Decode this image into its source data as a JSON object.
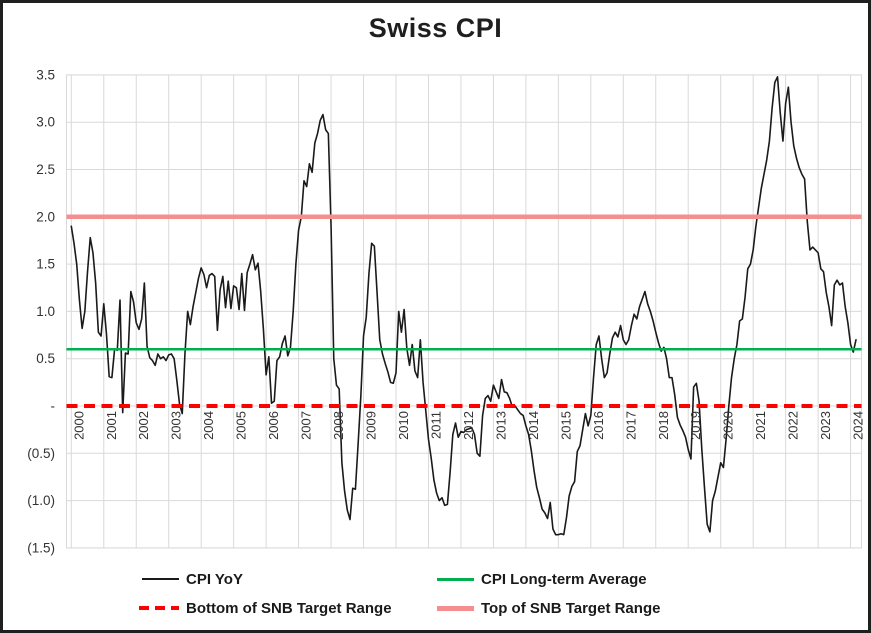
{
  "title": "Swiss CPI",
  "colors": {
    "cpi_line": "#1a1a1a",
    "average_line": "#00B050",
    "bottom_target_line": "#FF0000",
    "top_target_line": "#F58F8F",
    "gridline": "#D9D9D9",
    "axis_text": "#333333",
    "frame_border": "#1f1f1f",
    "background": "#ffffff"
  },
  "legend": {
    "items": [
      {
        "label": "CPI YoY"
      },
      {
        "label": "CPI Long-term Average"
      },
      {
        "label": "Bottom of SNB Target Range"
      },
      {
        "label": "Top of SNB Target Range"
      }
    ]
  },
  "chart_data": {
    "type": "line",
    "title": "Swiss CPI",
    "x_start": "2000-01",
    "frequency": "monthly",
    "ylim": [
      -1.5,
      3.5
    ],
    "grid": true,
    "legend_position": "bottom",
    "x_tick_years": [
      "2000",
      "2001",
      "2002",
      "2003",
      "2004",
      "2005",
      "2006",
      "2007",
      "2008",
      "2009",
      "2010",
      "2011",
      "2012",
      "2013",
      "2014",
      "2015",
      "2016",
      "2017",
      "2018",
      "2019",
      "2020",
      "2021",
      "2022",
      "2023",
      "2024"
    ],
    "y_ticks": [
      {
        "label": "3.5",
        "value": 3.5
      },
      {
        "label": "3.0",
        "value": 3.0
      },
      {
        "label": "2.5",
        "value": 2.5
      },
      {
        "label": "2.0",
        "value": 2.0
      },
      {
        "label": "1.5",
        "value": 1.5
      },
      {
        "label": "1.0",
        "value": 1.0
      },
      {
        "label": "0.5",
        "value": 0.5
      },
      {
        "label": "-",
        "value": 0.0
      },
      {
        "label": "(0.5)",
        "value": -0.5
      },
      {
        "label": "(1.0)",
        "value": -1.0
      },
      {
        "label": "(1.5)",
        "value": -1.5
      }
    ],
    "series": [
      {
        "name": "CPI YoY",
        "kind": "line",
        "color": "#1a1a1a",
        "monthly_values": [
          1.9,
          1.72,
          1.5,
          1.12,
          0.82,
          1.0,
          1.42,
          1.78,
          1.62,
          1.3,
          0.78,
          0.74,
          1.08,
          0.76,
          0.31,
          0.3,
          0.6,
          0.59,
          1.12,
          -0.07,
          0.56,
          0.55,
          1.21,
          1.1,
          0.88,
          0.81,
          0.92,
          1.3,
          0.63,
          0.51,
          0.48,
          0.43,
          0.55,
          0.5,
          0.52,
          0.48,
          0.54,
          0.55,
          0.5,
          0.27,
          0.02,
          -0.08,
          0.55,
          1.0,
          0.86,
          1.05,
          1.2,
          1.35,
          1.46,
          1.39,
          1.25,
          1.38,
          1.4,
          1.37,
          0.8,
          1.23,
          1.37,
          1.04,
          1.32,
          1.03,
          1.27,
          1.25,
          1.02,
          1.4,
          1.01,
          1.41,
          1.5,
          1.6,
          1.44,
          1.51,
          1.21,
          0.81,
          0.33,
          0.52,
          0.03,
          0.05,
          0.48,
          0.52,
          0.66,
          0.74,
          0.53,
          0.62,
          1.0,
          1.5,
          1.86,
          2.0,
          2.38,
          2.32,
          2.56,
          2.47,
          2.78,
          2.88,
          3.02,
          3.08,
          2.92,
          2.88,
          1.9,
          0.5,
          0.22,
          0.18,
          -0.6,
          -0.9,
          -1.1,
          -1.2,
          -0.87,
          -0.88,
          -0.4,
          0.1,
          0.74,
          0.94,
          1.4,
          1.72,
          1.69,
          1.2,
          0.7,
          0.55,
          0.45,
          0.36,
          0.25,
          0.24,
          0.35,
          1.0,
          0.78,
          1.02,
          0.61,
          0.43,
          0.65,
          0.37,
          0.3,
          0.7,
          0.25,
          -0.05,
          -0.35,
          -0.55,
          -0.78,
          -0.92,
          -1.0,
          -0.97,
          -1.05,
          -1.04,
          -0.7,
          -0.3,
          -0.18,
          -0.33,
          -0.27,
          -0.28,
          -0.25,
          -0.24,
          -0.23,
          -0.3,
          -0.5,
          -0.53,
          -0.1,
          0.08,
          0.11,
          0.05,
          0.22,
          0.15,
          0.08,
          0.28,
          0.15,
          0.14,
          0.08,
          -0.01,
          0.0,
          -0.04,
          -0.08,
          -0.1,
          -0.21,
          -0.3,
          -0.47,
          -0.68,
          -0.86,
          -0.97,
          -1.09,
          -1.13,
          -1.19,
          -1.02,
          -1.3,
          -1.36,
          -1.36,
          -1.35,
          -1.36,
          -1.18,
          -0.95,
          -0.85,
          -0.8,
          -0.48,
          -0.42,
          -0.25,
          -0.08,
          -0.21,
          -0.1,
          0.3,
          0.65,
          0.74,
          0.5,
          0.3,
          0.35,
          0.55,
          0.72,
          0.78,
          0.73,
          0.85,
          0.7,
          0.65,
          0.7,
          0.85,
          0.97,
          0.92,
          1.05,
          1.13,
          1.21,
          1.08,
          1.0,
          0.9,
          0.78,
          0.67,
          0.58,
          0.62,
          0.5,
          0.3,
          0.3,
          0.12,
          -0.12,
          -0.2,
          -0.26,
          -0.33,
          -0.46,
          -0.56,
          0.2,
          0.24,
          0.05,
          -0.45,
          -0.86,
          -1.25,
          -1.33,
          -1.0,
          -0.9,
          -0.75,
          -0.6,
          -0.65,
          -0.35,
          0.0,
          0.3,
          0.5,
          0.65,
          0.9,
          0.92,
          1.15,
          1.45,
          1.5,
          1.65,
          1.9,
          2.1,
          2.3,
          2.45,
          2.6,
          2.8,
          3.15,
          3.42,
          3.48,
          3.1,
          2.8,
          3.2,
          3.37,
          3.0,
          2.75,
          2.62,
          2.52,
          2.45,
          2.4,
          1.95,
          1.65,
          1.68,
          1.65,
          1.62,
          1.45,
          1.42,
          1.2,
          1.05,
          0.85,
          1.28,
          1.33,
          1.28,
          1.3,
          1.05,
          0.88,
          0.65,
          0.57,
          0.7
        ]
      },
      {
        "name": "CPI Long-term Average",
        "kind": "hline",
        "color": "#00B050",
        "value": 0.6
      },
      {
        "name": "Bottom of SNB Target Range",
        "kind": "hline-dashed",
        "color": "#FF0000",
        "value": 0.0
      },
      {
        "name": "Top of SNB Target Range",
        "kind": "hline",
        "color": "#F58F8F",
        "value": 2.0
      }
    ]
  }
}
